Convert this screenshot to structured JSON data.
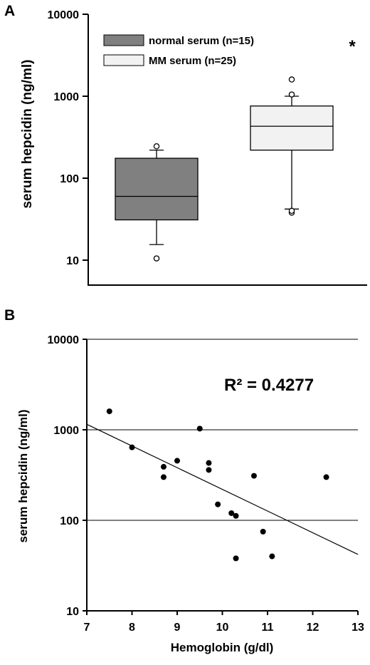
{
  "chart_data": [
    {
      "type": "box",
      "panel_label": "A",
      "ylabel": "serum hepcidin (ng/ml)",
      "yscale": "log",
      "ylim": [
        10,
        10000
      ],
      "y_ticks": [
        {
          "value": 10,
          "label": "10"
        },
        {
          "value": 100,
          "label": "100"
        },
        {
          "value": 1000,
          "label": "1000"
        },
        {
          "value": 10000,
          "label": "10000"
        }
      ],
      "legend_position": "top",
      "annotation": "*",
      "boxes": [
        {
          "name": "normal serum (n=15)",
          "color": "#808080",
          "q1": 31,
          "median": 60,
          "q3": 175,
          "whisker_low": 15.5,
          "whisker_high": 220,
          "outliers": [
            10.5,
            245
          ]
        },
        {
          "name": "MM serum (n=25)",
          "color": "#f2f2f2",
          "q1": 220,
          "median": 430,
          "q3": 760,
          "whisker_low": 42,
          "whisker_high": 1000,
          "outliers": [
            38,
            40,
            1050,
            1600
          ]
        }
      ]
    },
    {
      "type": "scatter",
      "panel_label": "B",
      "xlabel": "Hemoglobin (g/dl)",
      "ylabel": "serum hepcidin (ng/ml)",
      "yscale": "log",
      "xlim": [
        7,
        13
      ],
      "ylim": [
        10,
        10000
      ],
      "x_ticks": [
        {
          "value": 7,
          "label": "7"
        },
        {
          "value": 8,
          "label": "8"
        },
        {
          "value": 9,
          "label": "9"
        },
        {
          "value": 10,
          "label": "10"
        },
        {
          "value": 11,
          "label": "11"
        },
        {
          "value": 12,
          "label": "12"
        },
        {
          "value": 13,
          "label": "13"
        }
      ],
      "y_ticks": [
        {
          "value": 10,
          "label": "10"
        },
        {
          "value": 100,
          "label": "100"
        },
        {
          "value": 1000,
          "label": "1000"
        },
        {
          "value": 10000,
          "label": "10000"
        }
      ],
      "grid": "horizontal",
      "annotation": "R² =  0.4277",
      "points": [
        {
          "x": 7.5,
          "y": 1600
        },
        {
          "x": 8.0,
          "y": 640
        },
        {
          "x": 8.7,
          "y": 390
        },
        {
          "x": 8.7,
          "y": 300
        },
        {
          "x": 9.0,
          "y": 455
        },
        {
          "x": 9.5,
          "y": 1030
        },
        {
          "x": 9.7,
          "y": 430
        },
        {
          "x": 9.7,
          "y": 360
        },
        {
          "x": 9.9,
          "y": 150
        },
        {
          "x": 10.2,
          "y": 120
        },
        {
          "x": 10.3,
          "y": 112
        },
        {
          "x": 10.3,
          "y": 38
        },
        {
          "x": 10.7,
          "y": 310
        },
        {
          "x": 10.9,
          "y": 75
        },
        {
          "x": 11.1,
          "y": 40
        },
        {
          "x": 12.3,
          "y": 300
        }
      ],
      "trendline": {
        "x": [
          7,
          13
        ],
        "y": [
          1150,
          42
        ]
      }
    }
  ]
}
